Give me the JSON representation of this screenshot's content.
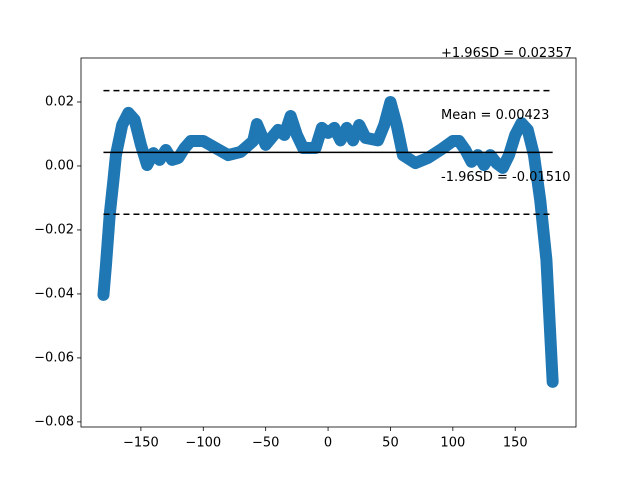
{
  "chart_data": {
    "type": "line",
    "x": [
      -180,
      -178,
      -175,
      -172,
      -170,
      -165,
      -160,
      -155,
      -150,
      -145,
      -140,
      -135,
      -130,
      -125,
      -120,
      -115,
      -110,
      -100,
      -90,
      -80,
      -70,
      -60,
      -57,
      -50,
      -40,
      -35,
      -30,
      -25,
      -20,
      -10,
      -5,
      0,
      5,
      10,
      15,
      20,
      25,
      30,
      40,
      45,
      50,
      55,
      60,
      70,
      80,
      90,
      100,
      105,
      110,
      115,
      120,
      125,
      130,
      135,
      140,
      145,
      150,
      155,
      160,
      165,
      170,
      175,
      180
    ],
    "series": [
      {
        "color": "#1f77b4",
        "values": [
          -0.0403,
          -0.031,
          -0.0153,
          -0.0044,
          0.0034,
          0.0128,
          0.0166,
          0.0144,
          0.0066,
          0.0003,
          0.004,
          0.0019,
          0.005,
          0.0019,
          0.0025,
          0.0056,
          0.0078,
          0.0078,
          0.0056,
          0.0034,
          0.0044,
          0.0078,
          0.0131,
          0.0066,
          0.0113,
          0.0097,
          0.0156,
          0.0097,
          0.0056,
          0.0056,
          0.0119,
          0.0103,
          0.0119,
          0.008,
          0.0119,
          0.008,
          0.0128,
          0.0088,
          0.008,
          0.0128,
          0.02,
          0.0128,
          0.0034,
          0.0009,
          0.0025,
          0.005,
          0.0078,
          0.0078,
          0.005,
          0.0013,
          0.0034,
          0.0003,
          0.0034,
          0.0009,
          -0.0006,
          0.0034,
          0.0097,
          0.0134,
          0.0113,
          0.0034,
          -0.0106,
          -0.0294,
          -0.0675
        ]
      }
    ],
    "reference_lines": [
      {
        "value": 0.02357,
        "label": "+1.96SD = 0.02357",
        "style": "dashed"
      },
      {
        "value": 0.00423,
        "label": "Mean = 0.00423",
        "style": "solid"
      },
      {
        "value": -0.0151,
        "label": "-1.96SD = -0.01510",
        "style": "dashed"
      }
    ],
    "xlim": [
      -198,
      198.7
    ],
    "ylim": [
      -0.0816,
      0.03375
    ],
    "xticks": [
      {
        "value": -150,
        "label": "−150"
      },
      {
        "value": -100,
        "label": "−100"
      },
      {
        "value": -50,
        "label": "−50"
      },
      0,
      50,
      100,
      150
    ],
    "yticks": [
      {
        "value": -0.08,
        "label": "−0.08"
      },
      {
        "value": -0.06,
        "label": "−0.06"
      },
      {
        "value": -0.04,
        "label": "−0.04"
      },
      {
        "value": -0.02,
        "label": "−0.02"
      },
      {
        "value": 0,
        "label": "0.00"
      },
      0.02
    ]
  }
}
